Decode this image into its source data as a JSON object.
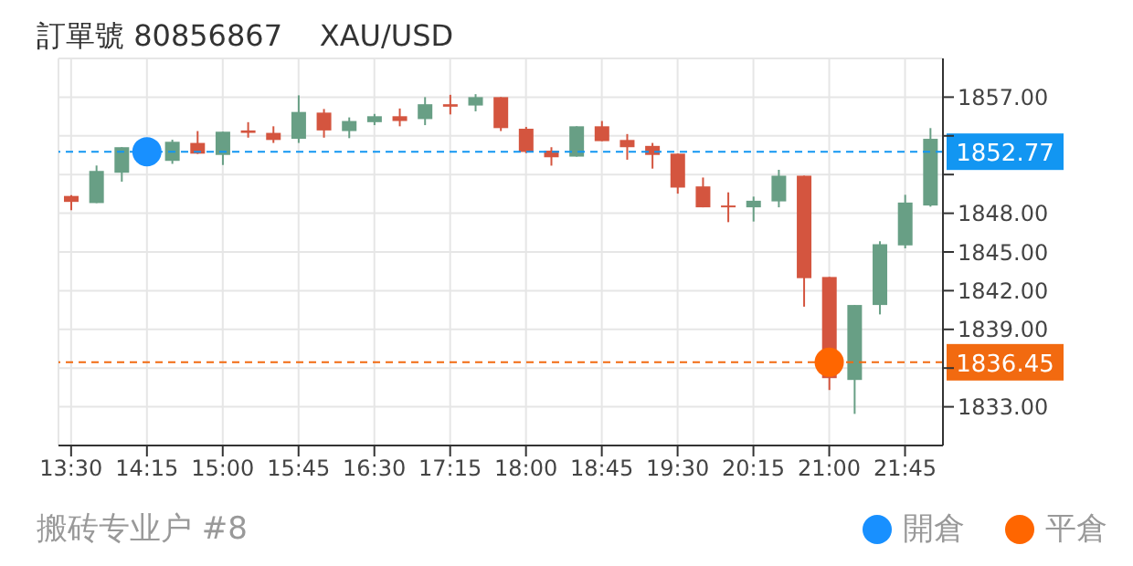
{
  "chart_data": {
    "type": "candlestick",
    "title": "訂單號 80856867    XAU/USD",
    "annotations": [
      "搬砖专业户 #8"
    ],
    "categories": [
      "13:30",
      null,
      null,
      "14:15",
      null,
      null,
      "15:00",
      null,
      null,
      "15:45",
      null,
      null,
      "16:30",
      null,
      null,
      "17:15",
      null,
      null,
      "18:00",
      null,
      null,
      "18:45",
      null,
      null,
      "19:30",
      null,
      null,
      "20:15",
      null,
      null,
      "21:00",
      null,
      null,
      "21:45",
      null
    ],
    "ohlc": [
      [
        1849.34,
        1849.4,
        1848.23,
        1848.88
      ],
      [
        1848.79,
        1851.7,
        1848.79,
        1851.28
      ],
      [
        1851.14,
        1853.12,
        1850.45,
        1853.12
      ],
      null,
      [
        1852.06,
        1853.7,
        1851.83,
        1853.54
      ],
      [
        1853.45,
        1854.37,
        1852.6,
        1852.62
      ],
      [
        1852.52,
        1854.32,
        1851.74,
        1854.32
      ],
      [
        1854.42,
        1855.06,
        1853.86,
        1854.23
      ],
      [
        1854.23,
        1854.74,
        1853.45,
        1853.68
      ],
      [
        1853.77,
        1857.14,
        1853.45,
        1855.85
      ],
      [
        1855.8,
        1856.08,
        1853.86,
        1854.42
      ],
      [
        1854.37,
        1855.43,
        1853.82,
        1855.15
      ],
      [
        1855.06,
        1855.7,
        1854.83,
        1855.52
      ],
      [
        1855.52,
        1856.12,
        1854.74,
        1855.15
      ],
      [
        1855.3,
        1857.0,
        1854.83,
        1856.45
      ],
      [
        1856.45,
        1857.18,
        1855.66,
        1856.26
      ],
      [
        1856.35,
        1857.23,
        1855.9,
        1857.0
      ],
      [
        1857.0,
        1857.0,
        1854.37,
        1854.6
      ],
      [
        1854.55,
        1854.69,
        1852.66,
        1852.75
      ],
      [
        1852.85,
        1853.12,
        1851.69,
        1852.34
      ],
      [
        1852.39,
        1854.74,
        1852.39,
        1854.74
      ],
      [
        1854.74,
        1855.15,
        1853.59,
        1853.59
      ],
      [
        1853.68,
        1854.14,
        1852.15,
        1853.12
      ],
      [
        1853.22,
        1853.45,
        1851.46,
        1852.52
      ],
      [
        1852.62,
        1852.62,
        1849.52,
        1849.99
      ],
      [
        1850.08,
        1850.77,
        1848.46,
        1848.46
      ],
      [
        1848.6,
        1849.62,
        1847.31,
        1848.46
      ],
      [
        1848.46,
        1849.29,
        1847.36,
        1848.97
      ],
      [
        1848.92,
        1851.37,
        1848.46,
        1850.91
      ],
      [
        1850.91,
        1850.91,
        1840.76,
        1842.97
      ],
      [
        1843.06,
        1843.06,
        1834.3,
        1835.22
      ],
      [
        1835.08,
        1840.89,
        1832.45,
        1840.89
      ],
      [
        1840.89,
        1845.83,
        1840.16,
        1845.6
      ],
      [
        1845.51,
        1849.43,
        1845.28,
        1848.83
      ],
      [
        1848.6,
        1854.6,
        1848.51,
        1853.77
      ]
    ],
    "colors": [
      "#d4553f",
      "#689f85",
      "#689f85",
      "#689f85",
      "#689f85",
      "#d4553f",
      "#689f85",
      "#d4553f",
      "#d4553f",
      "#689f85",
      "#d4553f",
      "#689f85",
      "#689f85",
      "#d4553f",
      "#689f85",
      "#d4553f",
      "#689f85",
      "#d4553f",
      "#d4553f",
      "#d4553f",
      "#689f85",
      "#d4553f",
      "#d4553f",
      "#d4553f",
      "#d4553f",
      "#d4553f",
      "#d4553f",
      "#689f85",
      "#689f85",
      "#d4553f",
      "#d4553f",
      "#689f85",
      "#689f85",
      "#689f85",
      "#689f85"
    ],
    "series": [
      {
        "type": "scatter",
        "name": "開倉",
        "color": "#1890ff",
        "x": [
          "14:15"
        ],
        "values": [
          1852.77
        ]
      },
      {
        "type": "scatter",
        "name": "平倉",
        "color": "#ff6600",
        "x": [
          "21:00"
        ],
        "values": [
          1836.45
        ]
      }
    ],
    "ref_lines": [
      {
        "axis": "y",
        "value": 1852.77,
        "label": "1852.77",
        "color": "#1296f2",
        "line_style": "dashed"
      },
      {
        "axis": "y",
        "value": 1836.45,
        "label": "1836.45",
        "color": "#f26a10",
        "line_style": "dashed"
      }
    ],
    "ylim": [
      1830,
      1860
    ],
    "yticks": [
      {
        "value": 1833,
        "label": "1833.00"
      },
      {
        "value": 1836,
        "label": null
      },
      {
        "value": 1839,
        "label": "1839.00"
      },
      {
        "value": 1842,
        "label": "1842.00"
      },
      {
        "value": 1845,
        "label": "1845.00"
      },
      {
        "value": 1848,
        "label": "1848.00"
      },
      {
        "value": 1851,
        "label": null
      },
      {
        "value": 1854,
        "label": null
      },
      {
        "value": 1857,
        "label": "1857.00"
      }
    ],
    "grid": true,
    "legend": "bottom right",
    "marker": "circle"
  }
}
